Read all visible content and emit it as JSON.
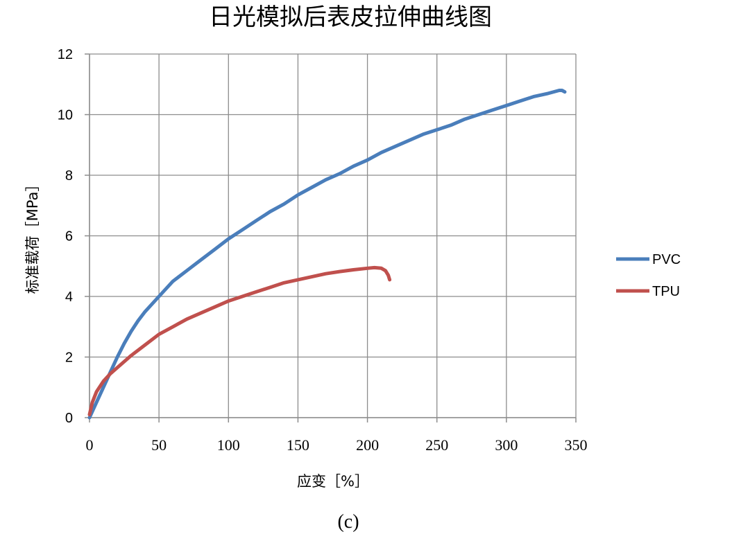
{
  "chart_data": {
    "type": "line",
    "title": "日光模拟后表皮拉伸曲线图",
    "xlabel": "应变［%］",
    "ylabel": "标准载荷［MPa］",
    "caption": "(c)",
    "xlim": [
      0,
      350
    ],
    "ylim": [
      0,
      12
    ],
    "x_ticks": [
      0,
      50,
      100,
      150,
      200,
      250,
      300,
      350
    ],
    "y_ticks": [
      0,
      2,
      4,
      6,
      8,
      10,
      12
    ],
    "grid": true,
    "legend_position": "right",
    "series": [
      {
        "name": "PVC",
        "color": "#4a7ebb",
        "points": [
          [
            0,
            0
          ],
          [
            5,
            0.5
          ],
          [
            10,
            1.0
          ],
          [
            15,
            1.5
          ],
          [
            20,
            2.0
          ],
          [
            25,
            2.45
          ],
          [
            30,
            2.85
          ],
          [
            35,
            3.2
          ],
          [
            40,
            3.5
          ],
          [
            50,
            4.0
          ],
          [
            60,
            4.5
          ],
          [
            70,
            4.85
          ],
          [
            80,
            5.2
          ],
          [
            90,
            5.55
          ],
          [
            100,
            5.9
          ],
          [
            110,
            6.2
          ],
          [
            120,
            6.5
          ],
          [
            130,
            6.8
          ],
          [
            140,
            7.05
          ],
          [
            150,
            7.35
          ],
          [
            160,
            7.6
          ],
          [
            170,
            7.85
          ],
          [
            180,
            8.05
          ],
          [
            190,
            8.3
          ],
          [
            200,
            8.5
          ],
          [
            210,
            8.75
          ],
          [
            220,
            8.95
          ],
          [
            230,
            9.15
          ],
          [
            240,
            9.35
          ],
          [
            250,
            9.5
          ],
          [
            260,
            9.65
          ],
          [
            270,
            9.85
          ],
          [
            280,
            10.0
          ],
          [
            290,
            10.15
          ],
          [
            300,
            10.3
          ],
          [
            310,
            10.45
          ],
          [
            320,
            10.6
          ],
          [
            330,
            10.7
          ],
          [
            338,
            10.8
          ],
          [
            340,
            10.8
          ],
          [
            342,
            10.75
          ]
        ]
      },
      {
        "name": "TPU",
        "color": "#c0504d",
        "points": [
          [
            0,
            0.1
          ],
          [
            2,
            0.5
          ],
          [
            5,
            0.85
          ],
          [
            10,
            1.2
          ],
          [
            15,
            1.45
          ],
          [
            20,
            1.65
          ],
          [
            30,
            2.05
          ],
          [
            40,
            2.4
          ],
          [
            50,
            2.75
          ],
          [
            60,
            3.0
          ],
          [
            70,
            3.25
          ],
          [
            80,
            3.45
          ],
          [
            90,
            3.65
          ],
          [
            100,
            3.85
          ],
          [
            110,
            4.0
          ],
          [
            120,
            4.15
          ],
          [
            130,
            4.3
          ],
          [
            140,
            4.45
          ],
          [
            150,
            4.55
          ],
          [
            160,
            4.65
          ],
          [
            170,
            4.75
          ],
          [
            180,
            4.82
          ],
          [
            190,
            4.88
          ],
          [
            200,
            4.93
          ],
          [
            205,
            4.95
          ],
          [
            210,
            4.93
          ],
          [
            213,
            4.85
          ],
          [
            215,
            4.7
          ],
          [
            216,
            4.55
          ]
        ]
      }
    ]
  }
}
